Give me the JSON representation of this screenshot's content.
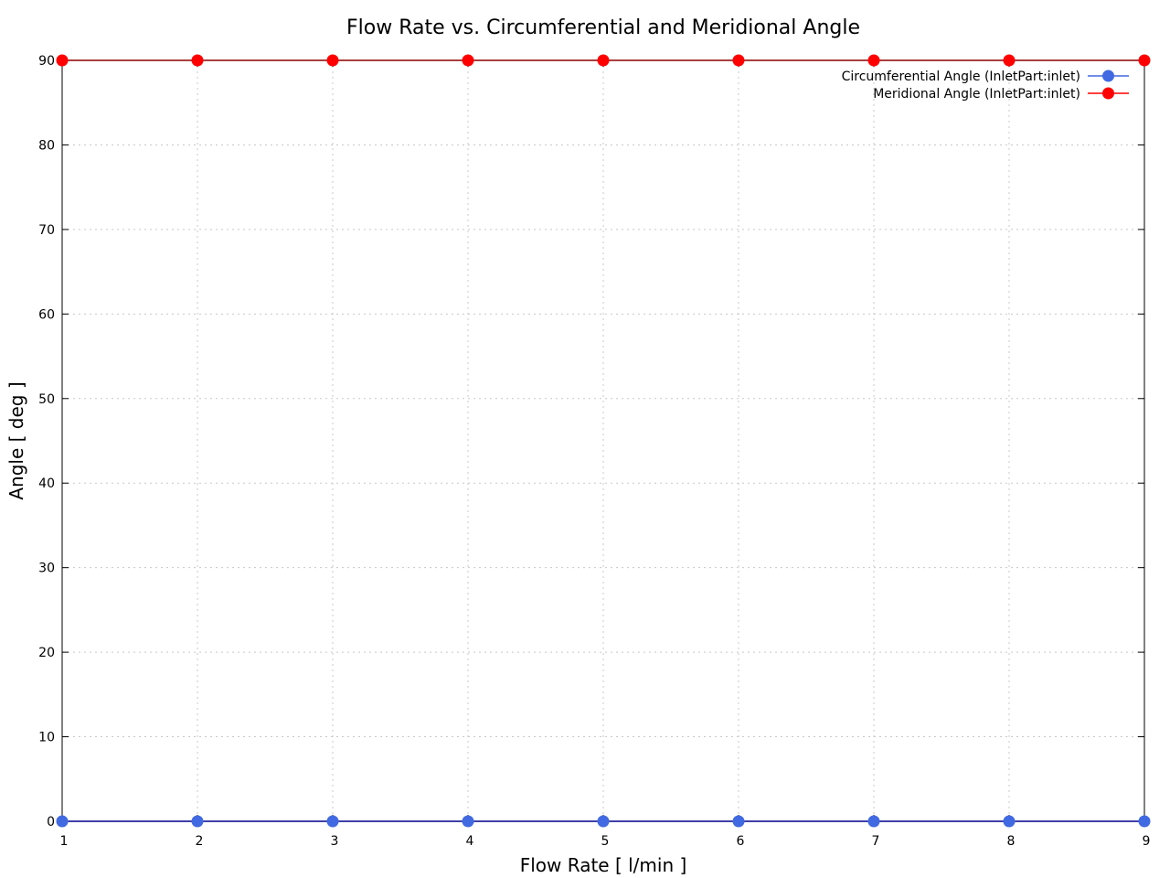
{
  "chart_data": {
    "type": "line",
    "title": "Flow Rate vs. Circumferential and Meridional Angle",
    "xlabel": "Flow Rate [ l/min ]",
    "ylabel": "Angle [ deg ]",
    "xlim": [
      1,
      9
    ],
    "ylim": [
      0,
      90
    ],
    "x_ticks": [
      1,
      2,
      3,
      4,
      5,
      6,
      7,
      8,
      9
    ],
    "y_ticks": [
      0,
      10,
      20,
      30,
      40,
      50,
      60,
      70,
      80,
      90
    ],
    "grid": true,
    "legend_position": "top-right",
    "x": [
      1,
      2,
      3,
      4,
      5,
      6,
      7,
      8,
      9
    ],
    "series": [
      {
        "name": "Circumferential Angle (InletPart:inlet)",
        "color": "#4169e1",
        "line_color": "#00008b",
        "values": [
          0,
          0,
          0,
          0,
          0,
          0,
          0,
          0,
          0
        ]
      },
      {
        "name": "Meridional Angle (InletPart:inlet)",
        "color": "#ff0000",
        "line_color": "#8b0000",
        "values": [
          90,
          90,
          90,
          90,
          90,
          90,
          90,
          90,
          90
        ]
      }
    ]
  }
}
